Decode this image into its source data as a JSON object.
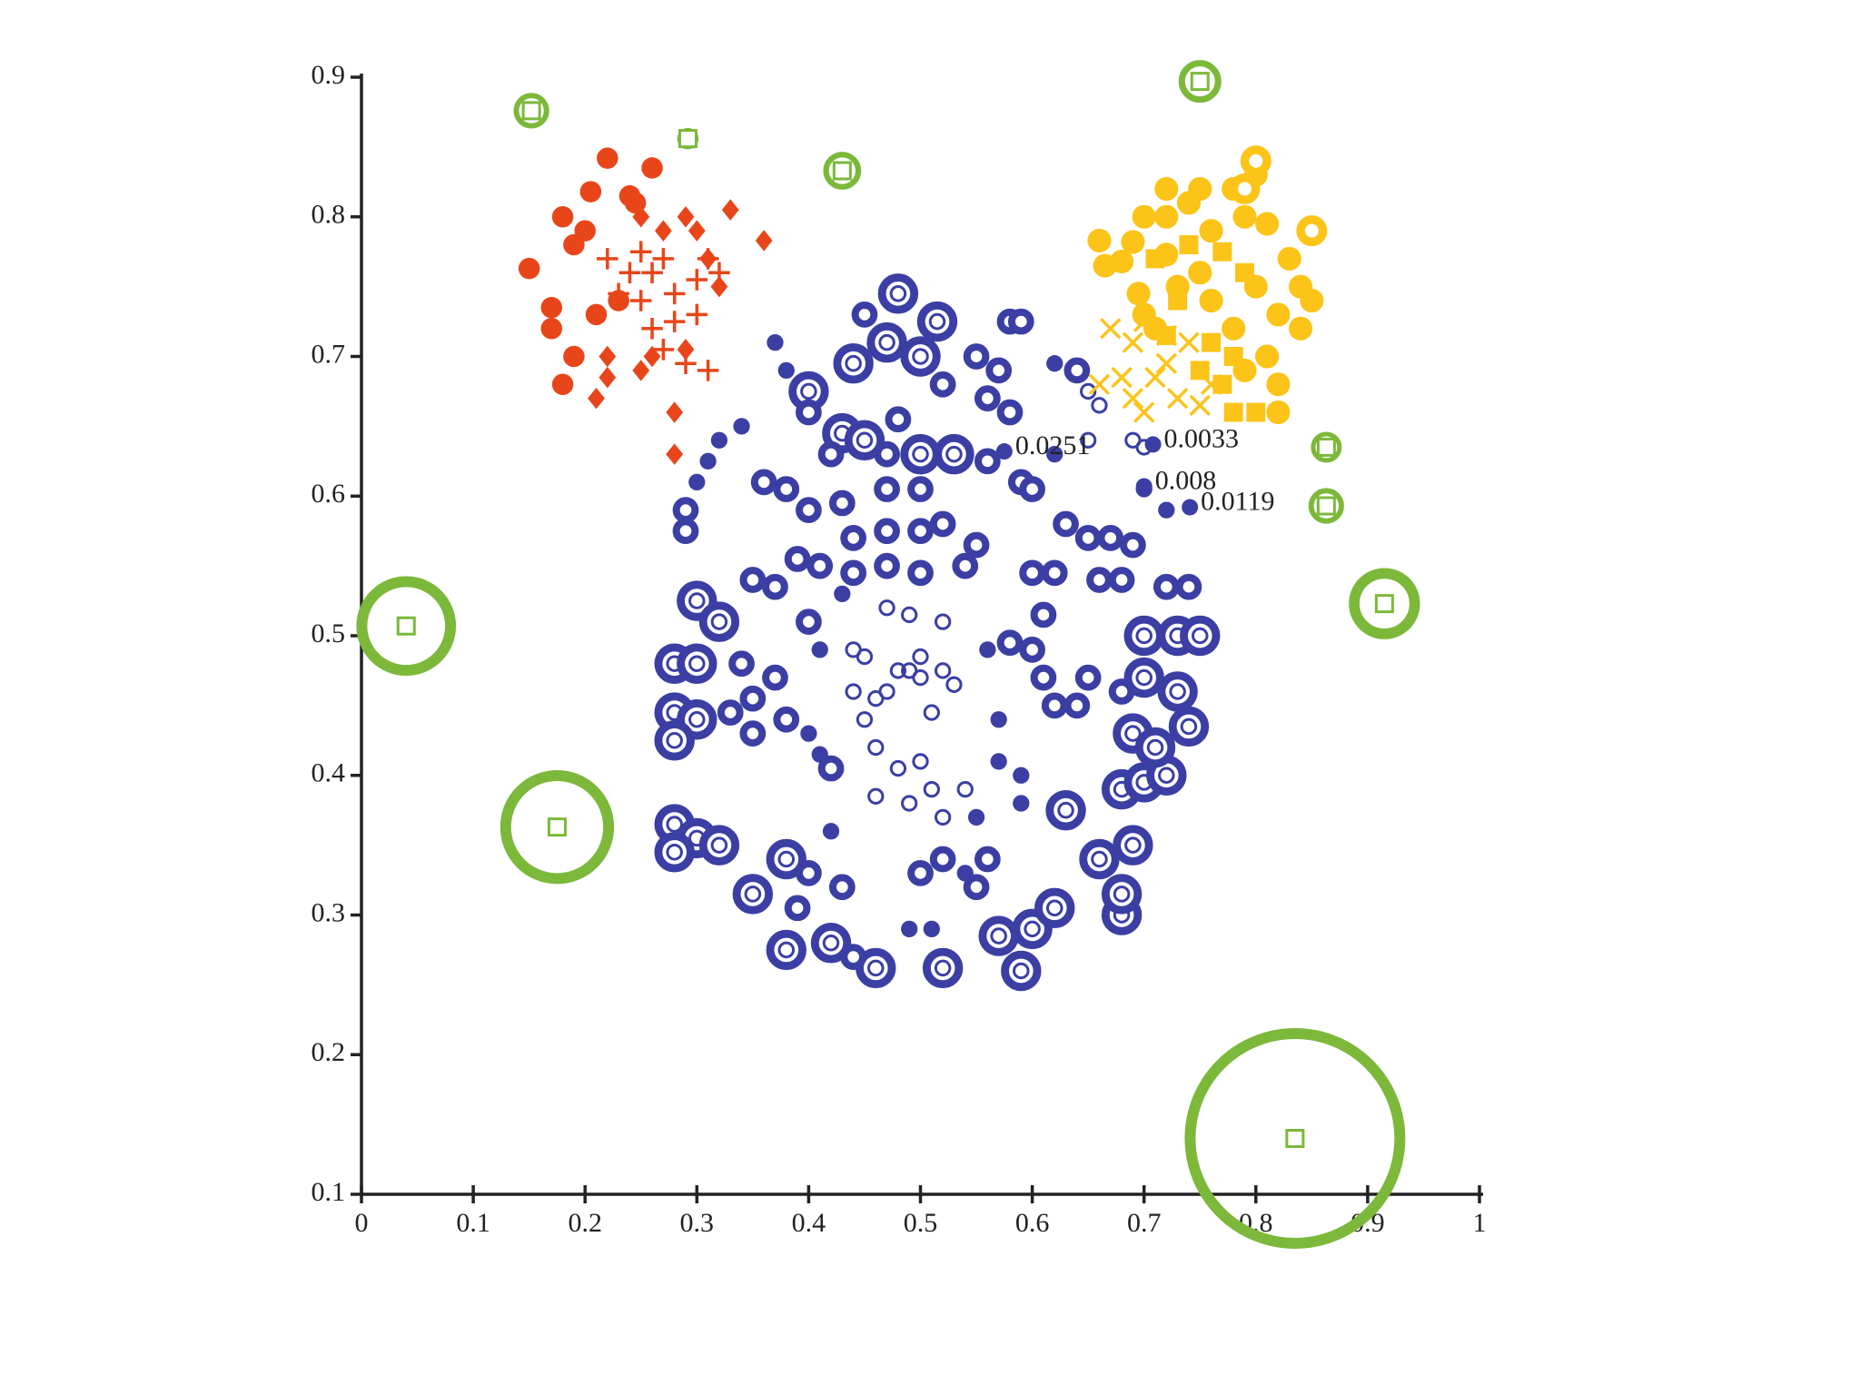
{
  "chart_data": {
    "type": "scatter",
    "xlim": [
      0,
      1
    ],
    "ylim": [
      0.1,
      0.9
    ],
    "xticks": [
      0,
      0.1,
      0.2,
      0.3,
      0.4,
      0.5,
      0.6,
      0.7,
      0.8,
      0.9,
      1
    ],
    "yticks": [
      0.1,
      0.2,
      0.3,
      0.4,
      0.5,
      0.6,
      0.7,
      0.8,
      0.9
    ],
    "grid": false,
    "series": [
      {
        "color": "#3b3fa3",
        "marker": "big-ring",
        "size": 17,
        "x": [
          0.48,
          0.515,
          0.44,
          0.47,
          0.5,
          0.43,
          0.45,
          0.5,
          0.53,
          0.28,
          0.3,
          0.28,
          0.3,
          0.28,
          0.3,
          0.32,
          0.28,
          0.3,
          0.32,
          0.28,
          0.35,
          0.38,
          0.42,
          0.46,
          0.52,
          0.57,
          0.59,
          0.6,
          0.62,
          0.68,
          0.68,
          0.66,
          0.69,
          0.68,
          0.7,
          0.72,
          0.74,
          0.69,
          0.71,
          0.7,
          0.73,
          0.7,
          0.73,
          0.75,
          0.63,
          0.4,
          0.38
        ],
        "values": [
          0.745,
          0.725,
          0.695,
          0.71,
          0.7,
          0.645,
          0.64,
          0.63,
          0.63,
          0.48,
          0.48,
          0.445,
          0.44,
          0.425,
          0.525,
          0.51,
          0.365,
          0.355,
          0.35,
          0.345,
          0.315,
          0.275,
          0.28,
          0.262,
          0.262,
          0.285,
          0.26,
          0.29,
          0.305,
          0.3,
          0.315,
          0.34,
          0.35,
          0.39,
          0.395,
          0.4,
          0.435,
          0.43,
          0.42,
          0.47,
          0.46,
          0.5,
          0.5,
          0.5,
          0.375,
          0.675,
          0.34
        ]
      },
      {
        "color": "#3b3fa3",
        "marker": "ring",
        "size": 11,
        "x": [
          0.45,
          0.52,
          0.55,
          0.57,
          0.58,
          0.59,
          0.4,
          0.56,
          0.58,
          0.64,
          0.48,
          0.42,
          0.47,
          0.56,
          0.59,
          0.6,
          0.47,
          0.5,
          0.36,
          0.29,
          0.29,
          0.38,
          0.4,
          0.43,
          0.44,
          0.47,
          0.5,
          0.52,
          0.55,
          0.39,
          0.41,
          0.44,
          0.47,
          0.5,
          0.54,
          0.63,
          0.65,
          0.67,
          0.69,
          0.6,
          0.62,
          0.66,
          0.35,
          0.37,
          0.4,
          0.61,
          0.58,
          0.6,
          0.68,
          0.72,
          0.74,
          0.34,
          0.37,
          0.33,
          0.35,
          0.38,
          0.35,
          0.42,
          0.61,
          0.62,
          0.64,
          0.65,
          0.68,
          0.4,
          0.39,
          0.44,
          0.43,
          0.5,
          0.52,
          0.55,
          0.56
        ],
        "values": [
          0.73,
          0.68,
          0.7,
          0.69,
          0.725,
          0.725,
          0.66,
          0.67,
          0.66,
          0.69,
          0.655,
          0.63,
          0.63,
          0.625,
          0.61,
          0.605,
          0.605,
          0.605,
          0.61,
          0.59,
          0.575,
          0.605,
          0.59,
          0.595,
          0.57,
          0.575,
          0.575,
          0.58,
          0.565,
          0.555,
          0.55,
          0.545,
          0.55,
          0.545,
          0.55,
          0.58,
          0.57,
          0.57,
          0.565,
          0.545,
          0.545,
          0.54,
          0.54,
          0.535,
          0.51,
          0.515,
          0.495,
          0.49,
          0.54,
          0.535,
          0.535,
          0.48,
          0.47,
          0.445,
          0.455,
          0.44,
          0.43,
          0.405,
          0.47,
          0.45,
          0.45,
          0.47,
          0.46,
          0.33,
          0.305,
          0.27,
          0.32,
          0.33,
          0.34,
          0.32,
          0.34
        ]
      },
      {
        "color": "#3b3fa3",
        "marker": "thin-ring",
        "size": 7,
        "x": [
          0.45,
          0.46,
          0.48,
          0.5,
          0.51,
          0.46,
          0.49,
          0.52,
          0.44,
          0.46,
          0.47,
          0.48,
          0.5,
          0.53,
          0.51,
          0.45,
          0.44,
          0.49,
          0.52,
          0.5,
          0.49,
          0.52,
          0.65,
          0.66,
          0.65,
          0.69,
          0.7,
          0.54,
          0.47
        ],
        "values": [
          0.44,
          0.42,
          0.405,
          0.41,
          0.39,
          0.385,
          0.38,
          0.37,
          0.46,
          0.455,
          0.46,
          0.475,
          0.47,
          0.465,
          0.445,
          0.485,
          0.49,
          0.475,
          0.475,
          0.485,
          0.515,
          0.51,
          0.675,
          0.665,
          0.64,
          0.64,
          0.635,
          0.39,
          0.52
        ]
      },
      {
        "color": "#3b3fa3",
        "marker": "dot",
        "size": 7,
        "x": [
          0.37,
          0.38,
          0.62,
          0.31,
          0.3,
          0.34,
          0.32,
          0.57,
          0.57,
          0.56,
          0.59,
          0.59,
          0.41,
          0.43,
          0.72,
          0.7,
          0.62,
          0.42,
          0.55,
          0.54,
          0.49,
          0.51,
          0.4,
          0.41
        ],
        "values": [
          0.71,
          0.69,
          0.695,
          0.625,
          0.61,
          0.65,
          0.64,
          0.44,
          0.41,
          0.49,
          0.4,
          0.38,
          0.49,
          0.53,
          0.59,
          0.605,
          0.63,
          0.36,
          0.37,
          0.33,
          0.29,
          0.29,
          0.43,
          0.415
        ]
      },
      {
        "color": "#e8461a",
        "marker": "dot",
        "size": 9,
        "x": [
          0.15,
          0.22,
          0.24,
          0.205,
          0.18,
          0.19,
          0.2,
          0.17,
          0.17,
          0.19,
          0.18,
          0.21,
          0.23,
          0.26,
          0.245
        ],
        "values": [
          0.763,
          0.842,
          0.815,
          0.818,
          0.8,
          0.78,
          0.79,
          0.735,
          0.72,
          0.7,
          0.68,
          0.73,
          0.74,
          0.835,
          0.81
        ]
      },
      {
        "color": "#e8461a",
        "marker": "diamond",
        "size": 9,
        "x": [
          0.25,
          0.27,
          0.29,
          0.3,
          0.33,
          0.36,
          0.31,
          0.32,
          0.22,
          0.22,
          0.25,
          0.26,
          0.28,
          0.28,
          0.21,
          0.29
        ],
        "values": [
          0.8,
          0.79,
          0.8,
          0.79,
          0.805,
          0.783,
          0.77,
          0.75,
          0.7,
          0.685,
          0.69,
          0.7,
          0.66,
          0.63,
          0.67,
          0.705
        ]
      },
      {
        "color": "#e8461a",
        "marker": "plus",
        "size": 9,
        "x": [
          0.22,
          0.24,
          0.25,
          0.26,
          0.27,
          0.23,
          0.25,
          0.28,
          0.26,
          0.28,
          0.3,
          0.32,
          0.3,
          0.27,
          0.31,
          0.29,
          0.31
        ],
        "values": [
          0.77,
          0.76,
          0.775,
          0.76,
          0.77,
          0.745,
          0.74,
          0.745,
          0.72,
          0.725,
          0.73,
          0.76,
          0.755,
          0.705,
          0.69,
          0.695,
          0.77
        ]
      },
      {
        "color": "#fcc419",
        "marker": "dot",
        "size": 10,
        "x": [
          0.66,
          0.7,
          0.72,
          0.74,
          0.76,
          0.79,
          0.81,
          0.8,
          0.78,
          0.75,
          0.72,
          0.69,
          0.68,
          0.83,
          0.84,
          0.85,
          0.84,
          0.82,
          0.81,
          0.82,
          0.82,
          0.79,
          0.75,
          0.73,
          0.695,
          0.7,
          0.71,
          0.76,
          0.78,
          0.8,
          0.72,
          0.665
        ],
        "values": [
          0.783,
          0.8,
          0.8,
          0.81,
          0.79,
          0.8,
          0.795,
          0.83,
          0.82,
          0.82,
          0.773,
          0.782,
          0.768,
          0.77,
          0.75,
          0.74,
          0.72,
          0.73,
          0.7,
          0.68,
          0.66,
          0.69,
          0.76,
          0.75,
          0.745,
          0.73,
          0.72,
          0.74,
          0.72,
          0.75,
          0.82,
          0.765
        ]
      },
      {
        "color": "#fcc419",
        "marker": "square",
        "size": 8,
        "x": [
          0.71,
          0.74,
          0.77,
          0.79,
          0.73,
          0.72,
          0.76,
          0.78,
          0.75,
          0.78,
          0.8,
          0.77
        ],
        "values": [
          0.77,
          0.78,
          0.775,
          0.76,
          0.74,
          0.715,
          0.71,
          0.7,
          0.69,
          0.66,
          0.66,
          0.68
        ]
      },
      {
        "color": "#fcc419",
        "marker": "cross",
        "size": 8,
        "x": [
          0.67,
          0.69,
          0.7,
          0.72,
          0.68,
          0.71,
          0.74,
          0.66,
          0.69,
          0.7,
          0.73,
          0.75,
          0.76,
          0.72
        ],
        "values": [
          0.72,
          0.71,
          0.725,
          0.715,
          0.685,
          0.685,
          0.71,
          0.68,
          0.67,
          0.66,
          0.67,
          0.665,
          0.68,
          0.695
        ]
      },
      {
        "color": "#fcc419",
        "marker": "ring",
        "size": 13,
        "x": [
          0.8,
          0.85,
          0.79
        ],
        "values": [
          0.84,
          0.79,
          0.82
        ]
      },
      {
        "color": "#7cb83a",
        "marker": "bubble",
        "x": [
          0.04,
          0.175,
          0.835,
          0.915,
          0.863,
          0.863,
          0.75,
          0.43,
          0.152,
          0.292
        ],
        "values": [
          0.507,
          0.363,
          0.14,
          0.523,
          0.593,
          0.635,
          0.897,
          0.833,
          0.876,
          0.856
        ],
        "sizes": [
          42,
          48,
          93,
          30,
          15,
          13,
          18,
          16,
          15,
          9
        ]
      }
    ],
    "annotations": [
      {
        "text": "0.0251",
        "x": 0.575,
        "y": 0.632
      },
      {
        "text": "0.0033",
        "x": 0.708,
        "y": 0.637
      },
      {
        "text": "0.008",
        "x": 0.7,
        "y": 0.607
      },
      {
        "text": "0.0119",
        "x": 0.741,
        "y": 0.592
      }
    ]
  }
}
